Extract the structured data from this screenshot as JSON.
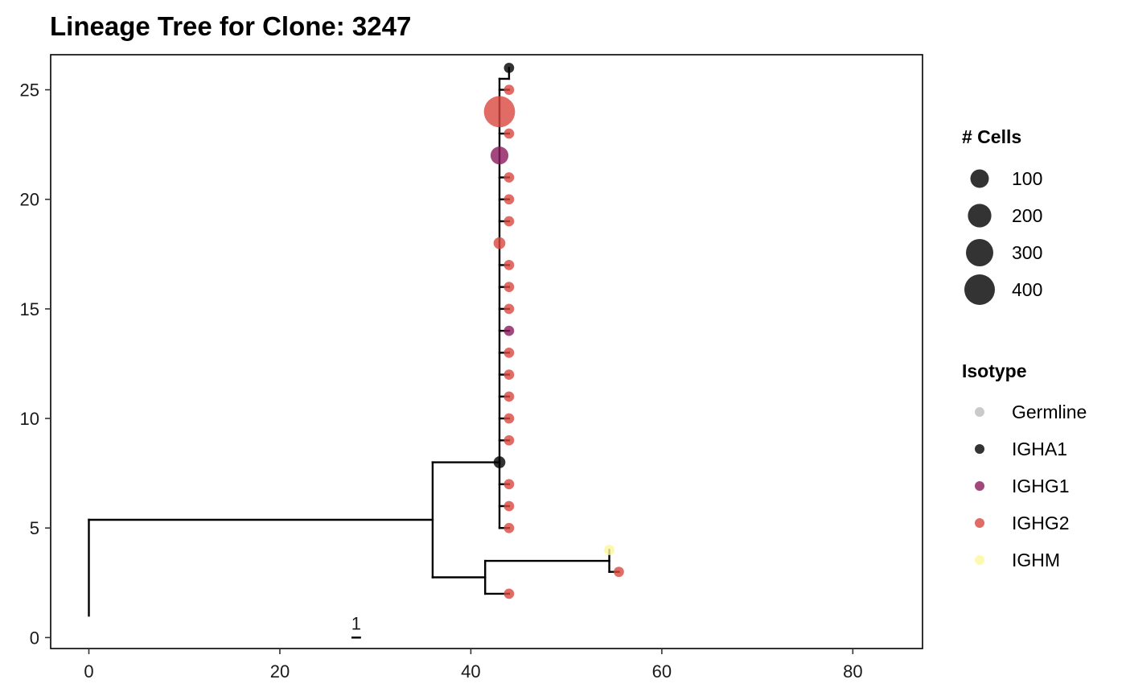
{
  "chart_data": {
    "type": "tree",
    "title": "Lineage Tree for Clone: 3247",
    "xlim": [
      -4,
      87.3
    ],
    "ylim": [
      -0.5,
      26.6
    ],
    "x_ticks": [
      0,
      20,
      40,
      60,
      80
    ],
    "y_ticks": [
      0,
      5,
      10,
      15,
      20,
      25
    ],
    "grid": false,
    "scale_bar": {
      "label": "1",
      "x_start": 27.5,
      "x_end": 28.5,
      "y": 0
    },
    "edges": [
      [
        0,
        1,
        0,
        5.375
      ],
      [
        0,
        5.375,
        36,
        5.375
      ],
      [
        36,
        2.75,
        36,
        8
      ],
      [
        36,
        8,
        43,
        8
      ],
      [
        36,
        2.75,
        41.5,
        2.75
      ],
      [
        41.5,
        2,
        41.5,
        3.5
      ],
      [
        41.5,
        2,
        44,
        2
      ],
      [
        41.5,
        3.5,
        54.5,
        3.5
      ],
      [
        54.5,
        3,
        54.5,
        4
      ],
      [
        54.5,
        3,
        55.5,
        3
      ],
      [
        43,
        5,
        43,
        25.5
      ],
      [
        43,
        25.5,
        44,
        25.5
      ],
      [
        44,
        25.5,
        44,
        26
      ],
      [
        43,
        25,
        44,
        25
      ],
      [
        43,
        23,
        44,
        23
      ],
      [
        43,
        21,
        44,
        21
      ],
      [
        43,
        20,
        44,
        20
      ],
      [
        43,
        19,
        44,
        19
      ],
      [
        43,
        17,
        44,
        17
      ],
      [
        43,
        16,
        44,
        16
      ],
      [
        43,
        15,
        44,
        15
      ],
      [
        43,
        14,
        44,
        14
      ],
      [
        43,
        13,
        44,
        13
      ],
      [
        43,
        12,
        44,
        12
      ],
      [
        43,
        11,
        44,
        11
      ],
      [
        43,
        10,
        44,
        10
      ],
      [
        43,
        9,
        44,
        9
      ],
      [
        43,
        7,
        44,
        7
      ],
      [
        43,
        6,
        44,
        6
      ],
      [
        43,
        5,
        44,
        5
      ]
    ],
    "nodes": [
      {
        "x": 44,
        "y": 26,
        "isotype": "IGHA1",
        "cells": 10
      },
      {
        "x": 44,
        "y": 25,
        "isotype": "IGHG2",
        "cells": 10
      },
      {
        "x": 43,
        "y": 24,
        "isotype": "IGHG2",
        "cells": 420
      },
      {
        "x": 44,
        "y": 23,
        "isotype": "IGHG2",
        "cells": 10
      },
      {
        "x": 43,
        "y": 22,
        "isotype": "IGHG1",
        "cells": 90
      },
      {
        "x": 44,
        "y": 21,
        "isotype": "IGHG2",
        "cells": 10
      },
      {
        "x": 44,
        "y": 20,
        "isotype": "IGHG2",
        "cells": 10
      },
      {
        "x": 44,
        "y": 19,
        "isotype": "IGHG2",
        "cells": 10
      },
      {
        "x": 43,
        "y": 18,
        "isotype": "IGHG2",
        "cells": 20
      },
      {
        "x": 44,
        "y": 17,
        "isotype": "IGHG2",
        "cells": 10
      },
      {
        "x": 44,
        "y": 16,
        "isotype": "IGHG2",
        "cells": 10
      },
      {
        "x": 44,
        "y": 15,
        "isotype": "IGHG2",
        "cells": 10
      },
      {
        "x": 44,
        "y": 14,
        "isotype": "IGHG1",
        "cells": 10
      },
      {
        "x": 44,
        "y": 13,
        "isotype": "IGHG2",
        "cells": 10
      },
      {
        "x": 44,
        "y": 12,
        "isotype": "IGHG2",
        "cells": 10
      },
      {
        "x": 44,
        "y": 11,
        "isotype": "IGHG2",
        "cells": 10
      },
      {
        "x": 44,
        "y": 10,
        "isotype": "IGHG2",
        "cells": 10
      },
      {
        "x": 44,
        "y": 9,
        "isotype": "IGHG2",
        "cells": 10
      },
      {
        "x": 43,
        "y": 8,
        "isotype": "IGHA1",
        "cells": 20
      },
      {
        "x": 44,
        "y": 7,
        "isotype": "IGHG2",
        "cells": 10
      },
      {
        "x": 44,
        "y": 6,
        "isotype": "IGHG2",
        "cells": 10
      },
      {
        "x": 44,
        "y": 5,
        "isotype": "IGHG2",
        "cells": 10
      },
      {
        "x": 54.5,
        "y": 4,
        "isotype": "IGHM",
        "cells": 10
      },
      {
        "x": 55.5,
        "y": 3,
        "isotype": "IGHG2",
        "cells": 10
      },
      {
        "x": 44,
        "y": 2,
        "isotype": "IGHG2",
        "cells": 10
      }
    ],
    "legend": {
      "placement": "right",
      "size_title": "# Cells",
      "size_entries": [
        {
          "label": "100",
          "cells": 100
        },
        {
          "label": "200",
          "cells": 200
        },
        {
          "label": "300",
          "cells": 300
        },
        {
          "label": "400",
          "cells": 400
        }
      ],
      "isotype_title": "Isotype",
      "isotype_entries": [
        {
          "label": "Germline",
          "color": "#bdbdbd"
        },
        {
          "label": "IGHA1",
          "color": "#000000"
        },
        {
          "label": "IGHG1",
          "color": "#8c1a5e"
        },
        {
          "label": "IGHG2",
          "color": "#d9463e"
        },
        {
          "label": "IGHM",
          "color": "#fbf79a"
        }
      ]
    }
  }
}
